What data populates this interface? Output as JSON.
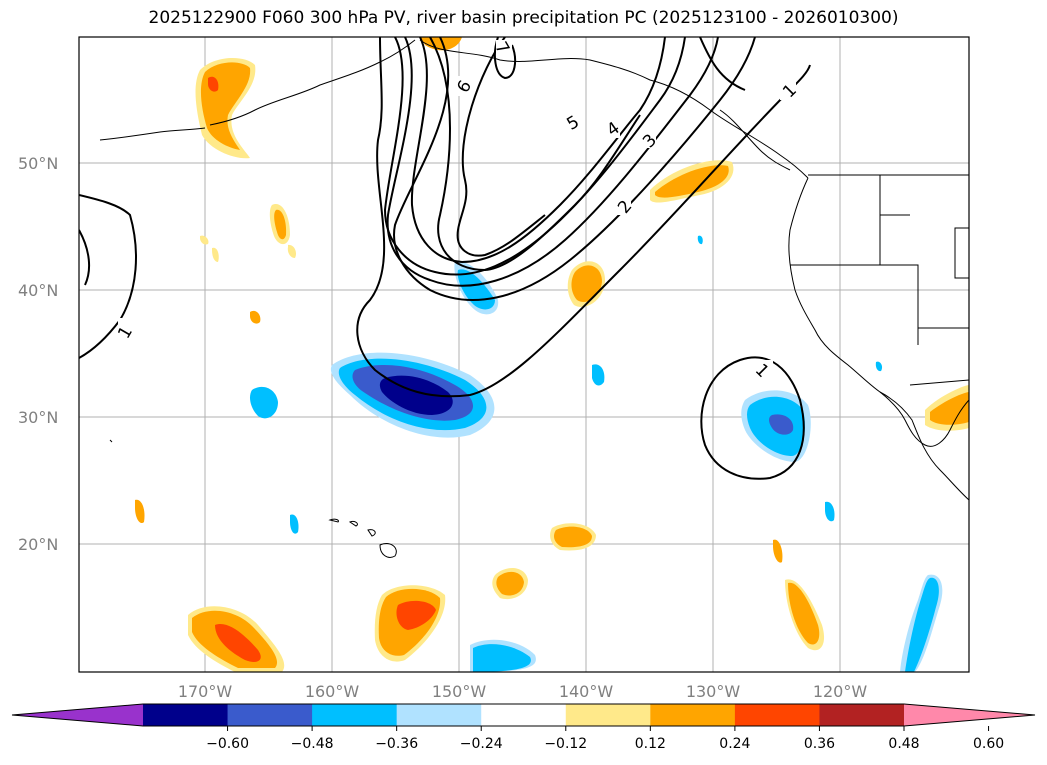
{
  "title": "2025122900 F060 300 hPa PV, river basin precipitation PC (2025123100 - 2026010300)",
  "lat_labels": [
    "50°N",
    "40°N",
    "30°N",
    "20°N"
  ],
  "lon_labels": [
    "170°W",
    "160°W",
    "150°W",
    "140°W",
    "130°W",
    "120°W"
  ],
  "contour_labels": [
    "1",
    "1",
    "1",
    "2",
    "3",
    "4",
    "5",
    "6",
    "7"
  ],
  "colorbar": {
    "tick_labels": [
      "−0.60",
      "−0.48",
      "−0.36",
      "−0.24",
      "−0.12",
      "0.12",
      "0.24",
      "0.36",
      "0.48",
      "0.60"
    ],
    "colors": [
      "#9932CC",
      "#00008B",
      "#3A5BCC",
      "#00BFFF",
      "#B0E2FF",
      "#FFFFFF",
      "#FFE98A",
      "#FFA500",
      "#FF4500",
      "#B22222",
      "#FF88AA"
    ]
  }
}
